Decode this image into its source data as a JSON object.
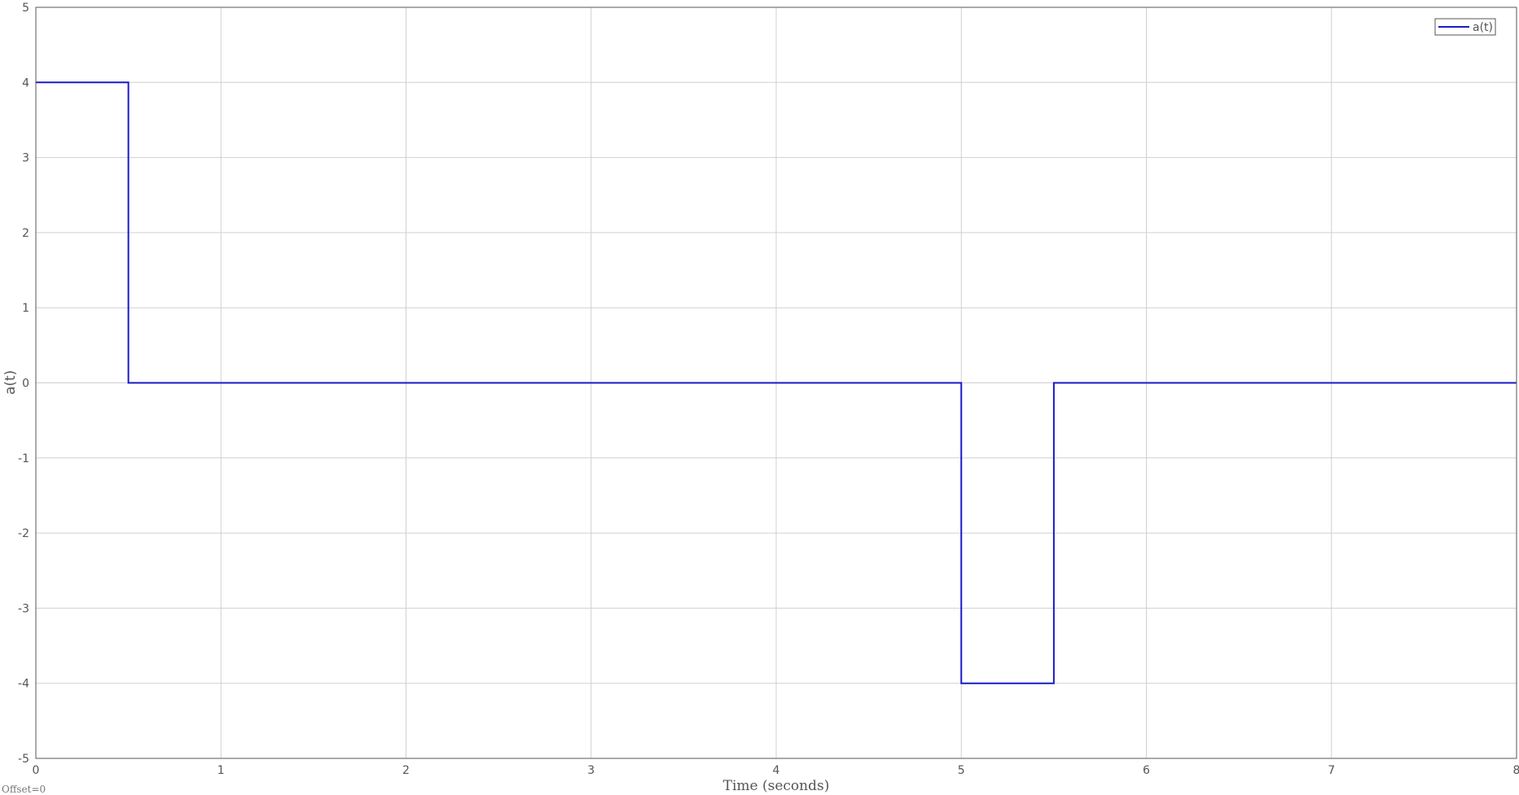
{
  "chart_data": {
    "type": "line",
    "xlabel": "Time (seconds)",
    "ylabel": "a(t)",
    "xlim": [
      0,
      8
    ],
    "ylim": [
      -5,
      5
    ],
    "xticks": [
      "0",
      "1",
      "2",
      "3",
      "4",
      "5",
      "6",
      "7",
      "8"
    ],
    "yticks": [
      "5",
      "4",
      "3",
      "2",
      "1",
      "0",
      "-1",
      "-2",
      "-3",
      "-4",
      "-5"
    ],
    "grid": true,
    "legend_position": "top-right",
    "series": [
      {
        "name": "a(t)",
        "color": "#1a1ac8",
        "step": true,
        "x": [
          0,
          0.5,
          0.5,
          5,
          5,
          5.5,
          5.5,
          8
        ],
        "y": [
          4,
          4,
          0,
          0,
          -4,
          -4,
          0,
          0
        ]
      }
    ],
    "footnote": "Offset=0"
  }
}
